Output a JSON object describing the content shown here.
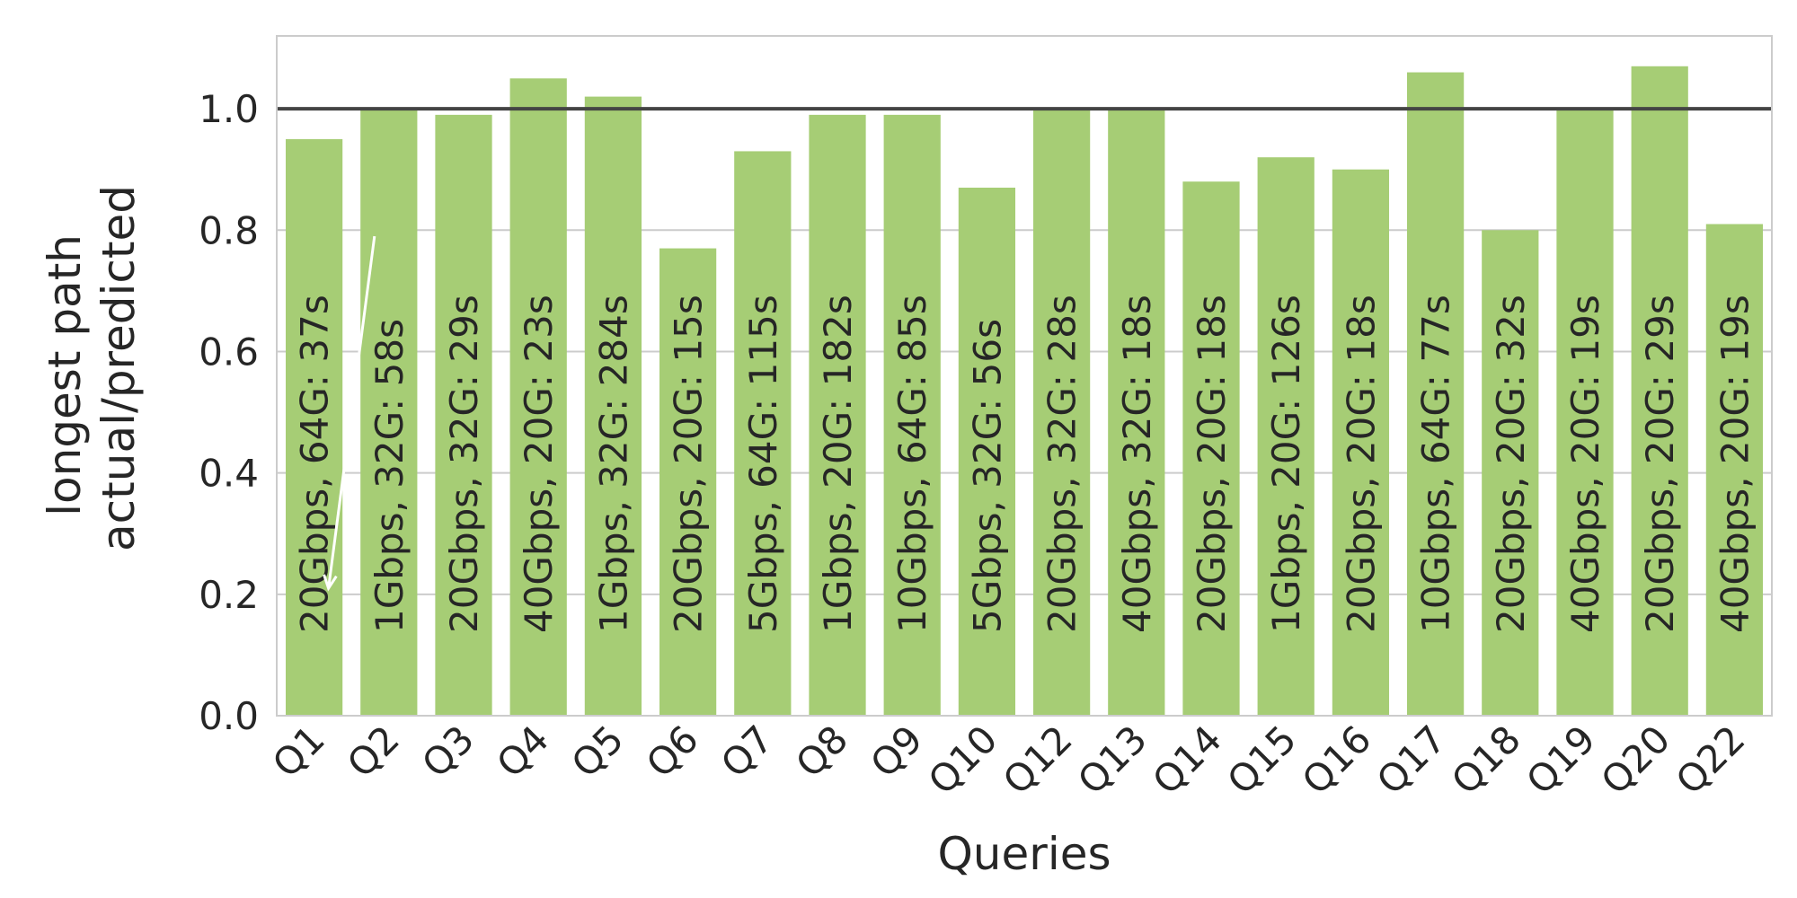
{
  "chart_data": {
    "type": "bar",
    "categories": [
      "Q1",
      "Q2",
      "Q3",
      "Q4",
      "Q5",
      "Q6",
      "Q7",
      "Q8",
      "Q9",
      "Q10",
      "Q12",
      "Q13",
      "Q14",
      "Q15",
      "Q16",
      "Q17",
      "Q18",
      "Q19",
      "Q20",
      "Q22"
    ],
    "values": [
      0.95,
      1.0,
      0.99,
      1.05,
      1.02,
      0.77,
      0.93,
      0.99,
      0.99,
      0.87,
      1.0,
      1.0,
      0.88,
      0.92,
      0.9,
      1.06,
      0.8,
      1.0,
      1.07,
      0.81
    ],
    "bar_labels": [
      "20Gbps, 64G: 37s",
      "1Gbps, 32G: 58s",
      "20Gbps, 32G: 29s",
      "40Gbps, 20G: 23s",
      "1Gbps, 32G: 284s",
      "20Gbps, 20G: 15s",
      "5Gbps, 64G: 115s",
      "1Gbps, 20G: 182s",
      "10Gbps, 64G: 85s",
      "5Gbps, 32G: 56s",
      "20Gbps, 32G: 28s",
      "40Gbps, 32G: 18s",
      "20Gbps, 20G: 18s",
      "1Gbps, 20G: 126s",
      "20Gbps, 20G: 18s",
      "10Gbps, 64G: 77s",
      "20Gbps, 20G: 32s",
      "40Gbps, 20G: 19s",
      "20Gbps, 20G: 29s",
      "40Gbps, 20G: 19s"
    ],
    "title": "",
    "xlabel": "Queries",
    "ylabel": [
      "longest path",
      "actual/predicted"
    ],
    "ylim": [
      0,
      1.12
    ],
    "yticks": [
      "0.0",
      "0.2",
      "0.4",
      "0.6",
      "0.8",
      "1.0"
    ],
    "reference_line": 1.0,
    "grid": "horizontal",
    "bar_color": "#a6cd75",
    "reference_line_color": "#444444",
    "annotation_arrow": {
      "from": {
        "x": "Q2",
        "y": 0.79
      },
      "to": {
        "x": "Q1",
        "y": 0.21
      }
    }
  }
}
